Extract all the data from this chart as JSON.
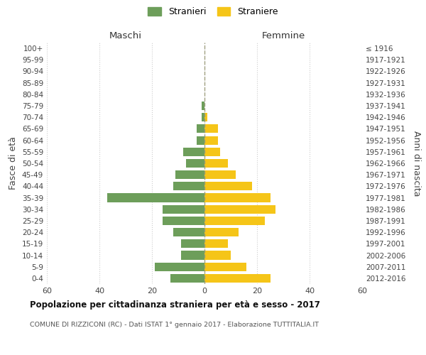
{
  "age_groups": [
    "100+",
    "95-99",
    "90-94",
    "85-89",
    "80-84",
    "75-79",
    "70-74",
    "65-69",
    "60-64",
    "55-59",
    "50-54",
    "45-49",
    "40-44",
    "35-39",
    "30-34",
    "25-29",
    "20-24",
    "15-19",
    "10-14",
    "5-9",
    "0-4"
  ],
  "birth_years": [
    "≤ 1916",
    "1917-1921",
    "1922-1926",
    "1927-1931",
    "1932-1936",
    "1937-1941",
    "1942-1946",
    "1947-1951",
    "1952-1956",
    "1957-1961",
    "1962-1966",
    "1967-1971",
    "1972-1976",
    "1977-1981",
    "1982-1986",
    "1987-1991",
    "1992-1996",
    "1997-2001",
    "2002-2006",
    "2007-2011",
    "2012-2016"
  ],
  "maschi": [
    0,
    0,
    0,
    0,
    0,
    1,
    1,
    3,
    3,
    8,
    7,
    11,
    12,
    37,
    16,
    16,
    12,
    9,
    9,
    19,
    13
  ],
  "femmine": [
    0,
    0,
    0,
    0,
    0,
    0,
    1,
    5,
    5,
    6,
    9,
    12,
    18,
    25,
    27,
    23,
    13,
    9,
    10,
    16,
    25
  ],
  "maschi_color": "#6d9e5a",
  "femmine_color": "#f5c518",
  "xlim": 60,
  "title": "Popolazione per cittadinanza straniera per età e sesso - 2017",
  "subtitle": "COMUNE DI RIZZICONI (RC) - Dati ISTAT 1° gennaio 2017 - Elaborazione TUTTITALIA.IT",
  "ylabel_left": "Fasce di età",
  "ylabel_right": "Anni di nascita",
  "xlabel_maschi": "Maschi",
  "xlabel_femmine": "Femmine",
  "legend_maschi": "Stranieri",
  "legend_femmine": "Straniere",
  "bg_color": "#ffffff",
  "grid_color": "#cccccc"
}
